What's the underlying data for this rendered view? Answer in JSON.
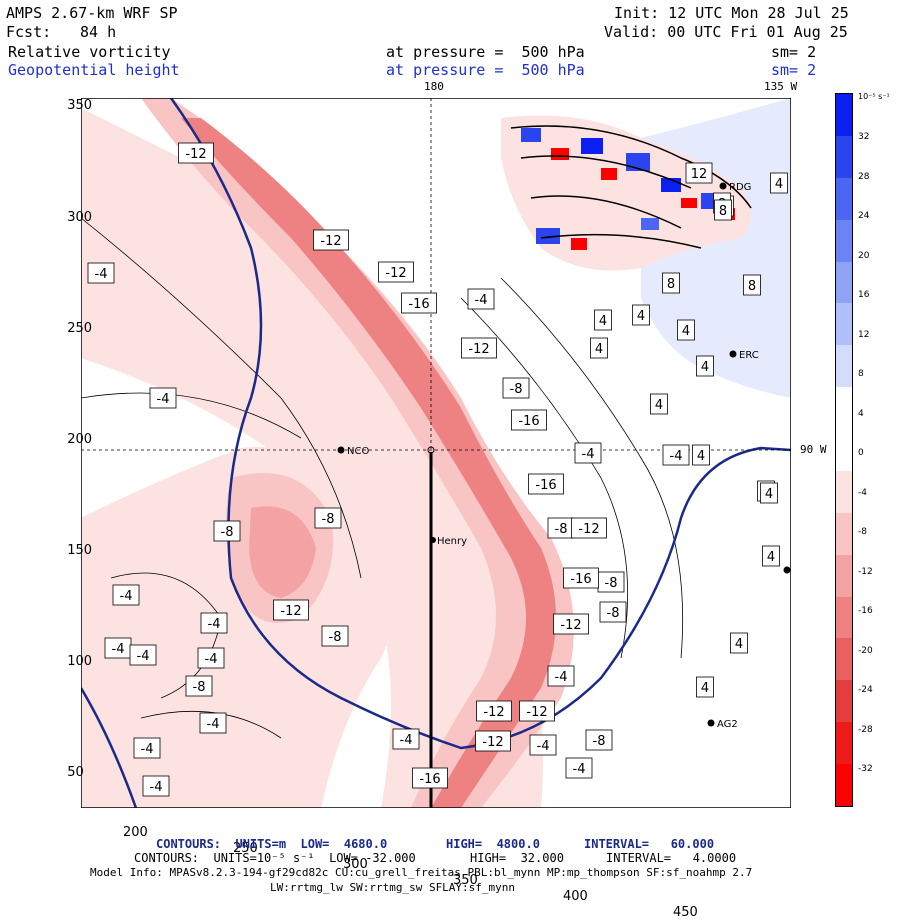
{
  "header": {
    "model": "AMPS 2.67-km WRF SP",
    "init": "Init: 12 UTC Mon 28 Jul 25",
    "fcst_label": "Fcst:",
    "fcst_value": "84 h",
    "valid": "Valid: 00 UTC Fri 01 Aug 25",
    "field1": "Relative vorticity",
    "field1_pressure": "at pressure =  500 hPa",
    "field1_sm": "sm= 2",
    "field2": "Geopotential height",
    "field2_pressure": "at pressure =  500 hPa",
    "field2_sm": "sm= 2"
  },
  "map": {
    "lon_180": "180",
    "lon_135w": "135 W",
    "lon_90w": "90 W",
    "x_ticks": [
      "200",
      "250",
      "300",
      "350",
      "400",
      "450"
    ],
    "y_ticks": [
      "350",
      "300",
      "250",
      "200",
      "150",
      "100",
      "50"
    ],
    "stations": [
      {
        "name": "NCO"
      },
      {
        "name": "Henry"
      },
      {
        "name": "RDG"
      },
      {
        "name": "ERC"
      },
      {
        "name": "AG2"
      }
    ],
    "contour_labels": [
      "-12",
      "-12",
      "-12",
      "-16",
      "-4",
      "-4",
      "-4",
      "-12",
      "-8",
      "-16",
      "-4",
      "-16",
      "-8",
      "-12",
      "-8",
      "-4",
      "-16",
      "-8",
      "-12",
      "-8",
      "-8",
      "-4",
      "-4",
      "-12",
      "-4",
      "-4",
      "-4",
      "-8",
      "-4",
      "-12",
      "-4",
      "-4",
      "-4",
      "-12",
      "-4",
      "-12",
      "-8",
      "-4",
      "-8",
      "-16",
      "-4",
      "4",
      "4",
      "4",
      "4",
      "4",
      "4",
      "4",
      "4",
      "4",
      "4",
      "4",
      "8",
      "8",
      "8",
      "8",
      "12",
      "8",
      "4",
      "4"
    ]
  },
  "colorbar": {
    "unit": "10⁻⁵ s⁻¹",
    "labels": [
      "32",
      "28",
      "24",
      "20",
      "16",
      "12",
      "8",
      "4",
      "0",
      "-4",
      "-8",
      "-12",
      "-16",
      "-20",
      "-24",
      "-28",
      "-32"
    ],
    "colors": [
      "#0a1ff0",
      "#2a44f0",
      "#4a66f2",
      "#6a84f4",
      "#8ea2f6",
      "#b0bff9",
      "#d4dcfb",
      "#ffffff",
      "#ffffff",
      "#fde2e2",
      "#f9c4c4",
      "#f3a3a3",
      "#ee8282",
      "#e86060",
      "#e33e3e",
      "#ee1a1a",
      "#ff0000"
    ]
  },
  "footer": {
    "line1_a": "CONTOURS:  UNITS=m  LOW=  4680.0",
    "line1_b": "HIGH=  4800.0",
    "line1_c": "INTERVAL=   60.000",
    "line2_a": "CONTOURS:  UNITS=10⁻⁵ s⁻¹  LOW= -32.000",
    "line2_b": "HIGH=  32.000",
    "line2_c": "INTERVAL=   4.0000",
    "line3": "Model Info: MPASv8.2.3-194-gf29cd82c CU:cu_grell_freitas PBL:bl_mynn MP:mp_thompson SF:sf_noahmp 2.7",
    "line4": "LW:rrtmg_lw SW:rrtmg_sw SFLAY:sf_mynn"
  }
}
